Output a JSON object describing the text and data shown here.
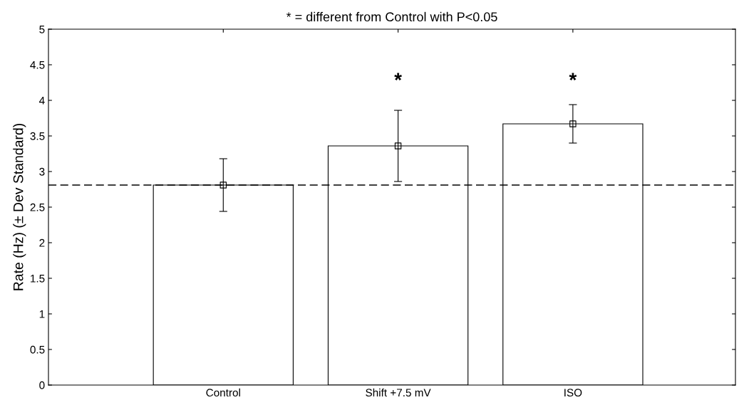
{
  "chart_data": {
    "type": "bar",
    "title": "* = different from Control with P<0.05",
    "ylabel": "Rate (Hz) (± Dev Standard)",
    "categories": [
      "Control",
      "Shift +7.5 mV",
      "ISO"
    ],
    "series": [
      {
        "color": "#ffffff",
        "values": [
          2.81,
          3.36,
          3.67
        ],
        "errors": [
          0.37,
          0.5,
          0.27
        ]
      },
      {
        "type": "scatter",
        "color": "#000000",
        "x": [
          "Control",
          "Shift +7.5 mV",
          "ISO"
        ],
        "values": [
          2.81,
          3.36,
          3.67
        ]
      }
    ],
    "marker": "square",
    "ylim": [
      0,
      5
    ],
    "yticks": [
      0,
      0.5,
      1,
      1.5,
      2,
      2.5,
      3,
      3.5,
      4,
      4.5,
      5
    ],
    "ref_lines": [
      {
        "axis": "y",
        "value": 2.81,
        "line_style": "dashed",
        "color": "#000000"
      }
    ],
    "annotations": [
      "*",
      "*"
    ],
    "grid": false,
    "legend": false
  }
}
